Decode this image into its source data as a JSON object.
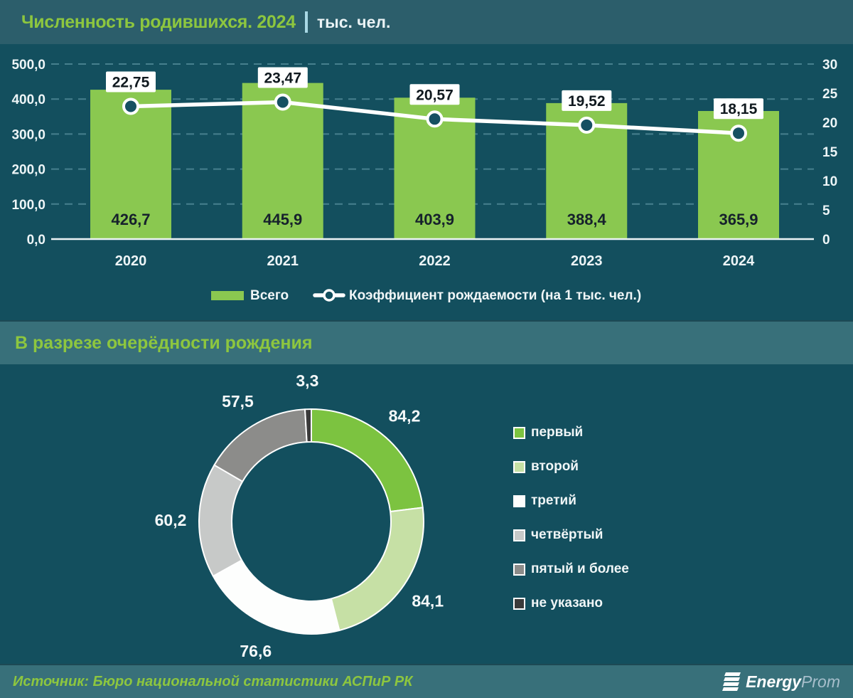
{
  "header": {
    "title": "Численность родившихся. 2024",
    "units": "тыс. чел."
  },
  "section2": {
    "title": "В разрезе очерёдности рождения"
  },
  "footer": {
    "source": "Источник: Бюро национальной статистики АСПиР РК",
    "logo_bold": "Energy",
    "logo_light": "Prom"
  },
  "colors": {
    "background": "#134F5E",
    "header_band": "#2C5E6B",
    "section_band": "#38707A",
    "accent_green": "#8DC63F",
    "bar_green": "#8AC850",
    "line_white": "#FFFFFF",
    "marker_fill": "#165062",
    "grid": "#47808E"
  },
  "chart_data": [
    {
      "type": "bar",
      "title": "Численность родившихся. 2024",
      "units": "тыс. чел.",
      "categories": [
        "2020",
        "2021",
        "2022",
        "2023",
        "2024"
      ],
      "series": [
        {
          "name": "Всего",
          "type": "bar",
          "axis": "left",
          "values": [
            426.7,
            445.9,
            403.9,
            388.4,
            365.9
          ],
          "labels": [
            "426,7",
            "445,9",
            "403,9",
            "388,4",
            "365,9"
          ],
          "color": "#8AC850"
        },
        {
          "name": "Коэффициент рождаемости (на 1 тыс. чел.)",
          "type": "line",
          "axis": "right",
          "values": [
            22.75,
            23.47,
            20.57,
            19.52,
            18.15
          ],
          "labels": [
            "22,75",
            "23,47",
            "20,57",
            "19,52",
            "18,15"
          ],
          "color": "#FFFFFF"
        }
      ],
      "left_axis": {
        "min": 0,
        "max": 500,
        "step": 100,
        "ticks": [
          {
            "value": 0,
            "label": "0,0"
          },
          {
            "value": 100,
            "label": "100,0"
          },
          {
            "value": 200,
            "label": "200,0"
          },
          {
            "value": 300,
            "label": "300,0"
          },
          {
            "value": 400,
            "label": "400,0"
          },
          {
            "value": 500,
            "label": "500,0"
          }
        ]
      },
      "right_axis": {
        "min": 0,
        "max": 30,
        "step": 5,
        "ticks": [
          {
            "value": 0,
            "label": "0"
          },
          {
            "value": 5,
            "label": "5"
          },
          {
            "value": 10,
            "label": "10"
          },
          {
            "value": 15,
            "label": "15"
          },
          {
            "value": 20,
            "label": "20"
          },
          {
            "value": 25,
            "label": "25"
          },
          {
            "value": 30,
            "label": "30"
          }
        ]
      },
      "grid": true,
      "legend_position": "bottom"
    },
    {
      "type": "pie",
      "donut": true,
      "title": "В разрезе очерёдности рождения",
      "total": 365.9,
      "segments": [
        {
          "label": "первый",
          "value": 84.2,
          "display": "84,2",
          "color": "#7CC340"
        },
        {
          "label": "второй",
          "value": 84.1,
          "display": "84,1",
          "color": "#C6E0A5"
        },
        {
          "label": "третий",
          "value": 76.6,
          "display": "76,6",
          "color": "#FDFEFD"
        },
        {
          "label": "четвёртый",
          "value": 60.2,
          "display": "60,2",
          "color": "#C7C9C8"
        },
        {
          "label": "пятый и более",
          "value": 57.5,
          "display": "57,5",
          "color": "#8C8C8A"
        },
        {
          "label": "не указано",
          "value": 3.3,
          "display": "3,3",
          "color": "#3A3A3A"
        }
      ],
      "legend_position": "right"
    }
  ]
}
